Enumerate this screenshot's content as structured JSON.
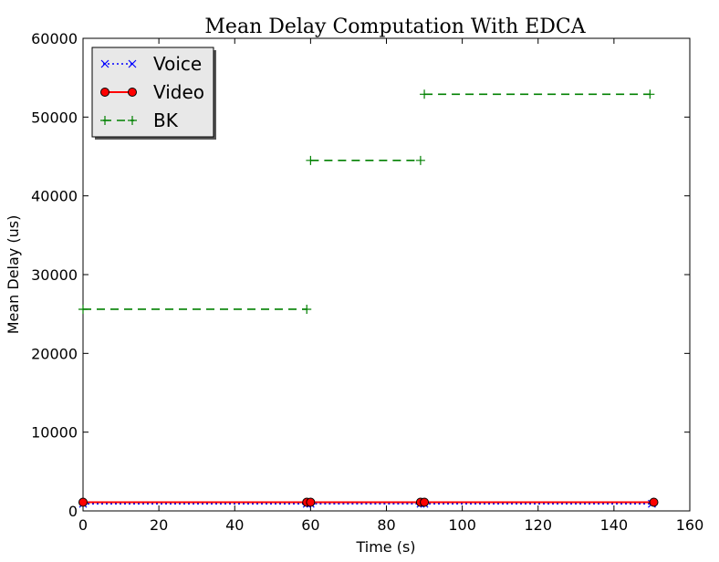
{
  "chart_data": {
    "type": "line",
    "title": "Mean Delay Computation With EDCA",
    "xlabel": "Time (s)",
    "ylabel": "Mean Delay (us)",
    "xlim": [
      0,
      160
    ],
    "ylim": [
      0,
      60000
    ],
    "xticks": [
      0,
      20,
      40,
      60,
      80,
      100,
      120,
      140,
      160
    ],
    "yticks": [
      0,
      10000,
      20000,
      30000,
      40000,
      50000,
      60000
    ],
    "xtick_labels": [
      "0",
      "20",
      "40",
      "60",
      "80",
      "100",
      "120",
      "140",
      "160"
    ],
    "ytick_labels": [
      "0",
      "10000",
      "20000",
      "30000",
      "40000",
      "50000",
      "60000"
    ],
    "grid": false,
    "legend_position": "top-left",
    "series": [
      {
        "name": "Voice",
        "color": "#0000ff",
        "linestyle": "dotted",
        "marker": "x",
        "segments": [
          [
            [
              0,
              900
            ],
            [
              59,
              900
            ]
          ],
          [
            [
              60,
              900
            ],
            [
              89,
              900
            ]
          ],
          [
            [
              90,
              900
            ],
            [
              150,
              900
            ]
          ]
        ]
      },
      {
        "name": "Video",
        "color": "#ff0000",
        "linestyle": "solid",
        "marker": "o",
        "segments": [
          [
            [
              0,
              1100
            ],
            [
              59,
              1100
            ]
          ],
          [
            [
              60,
              1100
            ],
            [
              89,
              1100
            ]
          ],
          [
            [
              90,
              1100
            ],
            [
              150.5,
              1100
            ]
          ]
        ]
      },
      {
        "name": "BK",
        "color": "#008000",
        "linestyle": "dashed",
        "marker": "+",
        "segments": [
          [
            [
              0,
              25600
            ],
            [
              59,
              25600
            ]
          ],
          [
            [
              60,
              44500
            ],
            [
              89,
              44500
            ]
          ],
          [
            [
              90,
              52900
            ],
            [
              149.5,
              52900
            ]
          ]
        ]
      }
    ]
  }
}
